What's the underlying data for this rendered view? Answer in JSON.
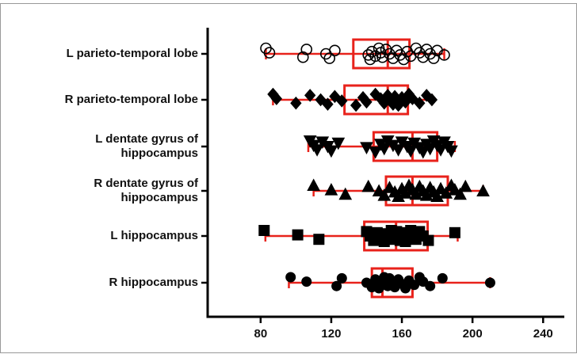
{
  "chart_data": {
    "type": "box",
    "categories": [
      [
        "L parieto-temporal lobe"
      ],
      [
        "R parieto-temporal lobe"
      ],
      [
        "L dentate gyrus of",
        "hippocampus"
      ],
      [
        "R dentate gyrus of",
        "hippocampus"
      ],
      [
        "L hippocampus"
      ],
      [
        "R hippocampus"
      ]
    ],
    "box_color": "#e8221b",
    "point_color": "#000000",
    "xlim": [
      50,
      252
    ],
    "xticks": [
      80,
      120,
      160,
      200,
      240
    ],
    "boxes": [
      {
        "marker": "open-circle",
        "min": 83,
        "q1": 132.5,
        "median": 152,
        "q3": 164.3,
        "max": 184,
        "points": [
          83,
          85,
          104,
          106,
          117,
          119,
          122,
          141,
          142,
          143,
          145,
          147,
          148,
          149,
          151,
          153,
          155,
          157,
          159,
          161,
          163,
          165,
          168,
          170,
          172,
          174,
          176,
          178,
          180,
          184
        ]
      },
      {
        "marker": "diamond",
        "min": 87,
        "q1": 127.5,
        "median": 152,
        "q3": 163.4,
        "max": 177,
        "points": [
          87,
          89,
          100,
          108,
          114,
          118,
          122,
          126,
          134,
          138,
          140,
          145,
          148,
          150,
          152,
          153,
          155,
          156,
          157,
          158,
          160,
          162,
          164,
          166,
          170,
          174,
          177
        ]
      },
      {
        "marker": "triangle-down",
        "min": 107,
        "q1": 144,
        "median": 166,
        "q3": 180,
        "max": 190,
        "points": [
          108,
          110,
          112,
          115,
          118,
          120,
          124,
          140,
          145,
          148,
          150,
          152,
          155,
          158,
          160,
          163,
          165,
          167,
          170,
          172,
          174,
          176,
          178,
          180,
          182,
          184,
          186,
          188
        ]
      },
      {
        "marker": "triangle-up",
        "min": 110,
        "q1": 151,
        "median": 166,
        "q3": 186,
        "max": 206,
        "points": [
          110,
          120,
          128,
          141,
          147,
          150,
          153,
          156,
          158,
          160,
          162,
          164,
          166,
          168,
          170,
          172,
          174,
          176,
          178,
          180,
          182,
          185,
          188,
          190,
          193,
          196,
          206
        ]
      },
      {
        "marker": "square",
        "min": 82.7,
        "q1": 138.7,
        "median": 156.7,
        "q3": 174.6,
        "max": 191.6,
        "points": [
          82,
          101,
          113,
          140,
          142,
          144,
          146,
          148,
          150,
          152,
          153,
          154,
          155,
          156,
          157,
          158,
          159,
          160,
          161,
          162,
          163,
          164,
          165,
          166,
          168,
          170,
          172,
          175,
          190
        ]
      },
      {
        "marker": "circle",
        "min": 96,
        "q1": 143,
        "median": 149,
        "q3": 166,
        "max": 210,
        "points": [
          97,
          106,
          123,
          126,
          140,
          143,
          145,
          146,
          147,
          148,
          149,
          150,
          151,
          152,
          153,
          155,
          156,
          158,
          160,
          162,
          164,
          167,
          170,
          172,
          176,
          183,
          210
        ]
      }
    ]
  }
}
